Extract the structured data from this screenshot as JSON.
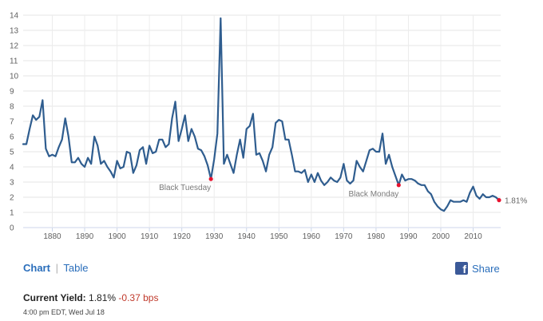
{
  "chart_data": {
    "type": "line",
    "title": "",
    "xlabel": "",
    "ylabel": "",
    "xlim": [
      1871,
      2018.5
    ],
    "ylim": [
      0,
      14
    ],
    "x_ticks": [
      1880,
      1890,
      1900,
      1910,
      1920,
      1930,
      1940,
      1950,
      1960,
      1970,
      1980,
      1990,
      2000,
      2010
    ],
    "y_ticks": [
      0,
      1,
      2,
      3,
      4,
      5,
      6,
      7,
      8,
      9,
      10,
      11,
      12,
      13,
      14
    ],
    "grid": true,
    "series": [
      {
        "name": "Yield",
        "color": "#2f5d8f",
        "points": [
          [
            1871,
            5.5
          ],
          [
            1872,
            5.5
          ],
          [
            1873,
            6.5
          ],
          [
            1874,
            7.4
          ],
          [
            1875,
            7.1
          ],
          [
            1876,
            7.3
          ],
          [
            1877,
            8.4
          ],
          [
            1878,
            5.2
          ],
          [
            1879,
            4.7
          ],
          [
            1880,
            4.8
          ],
          [
            1881,
            4.7
          ],
          [
            1882,
            5.3
          ],
          [
            1883,
            5.8
          ],
          [
            1884,
            7.2
          ],
          [
            1885,
            6.0
          ],
          [
            1886,
            4.3
          ],
          [
            1887,
            4.3
          ],
          [
            1888,
            4.6
          ],
          [
            1889,
            4.2
          ],
          [
            1890,
            4.0
          ],
          [
            1891,
            4.6
          ],
          [
            1892,
            4.2
          ],
          [
            1893,
            6.0
          ],
          [
            1894,
            5.4
          ],
          [
            1895,
            4.2
          ],
          [
            1896,
            4.4
          ],
          [
            1897,
            4.0
          ],
          [
            1898,
            3.7
          ],
          [
            1899,
            3.3
          ],
          [
            1900,
            4.4
          ],
          [
            1901,
            3.9
          ],
          [
            1902,
            4.0
          ],
          [
            1903,
            5.0
          ],
          [
            1904,
            4.9
          ],
          [
            1905,
            3.6
          ],
          [
            1906,
            4.1
          ],
          [
            1907,
            5.1
          ],
          [
            1908,
            5.3
          ],
          [
            1909,
            4.2
          ],
          [
            1910,
            5.4
          ],
          [
            1911,
            4.9
          ],
          [
            1912,
            5.0
          ],
          [
            1913,
            5.8
          ],
          [
            1914,
            5.8
          ],
          [
            1915,
            5.3
          ],
          [
            1916,
            5.5
          ],
          [
            1917,
            7.2
          ],
          [
            1918,
            8.3
          ],
          [
            1919,
            5.7
          ],
          [
            1920,
            6.5
          ],
          [
            1921,
            7.4
          ],
          [
            1922,
            5.7
          ],
          [
            1923,
            6.5
          ],
          [
            1924,
            6.0
          ],
          [
            1925,
            5.2
          ],
          [
            1926,
            5.1
          ],
          [
            1927,
            4.7
          ],
          [
            1928,
            4.1
          ],
          [
            1929,
            3.2
          ],
          [
            1930,
            4.5
          ],
          [
            1931,
            6.2
          ],
          [
            1932,
            13.8
          ],
          [
            1933,
            4.2
          ],
          [
            1934,
            4.8
          ],
          [
            1935,
            4.2
          ],
          [
            1936,
            3.6
          ],
          [
            1937,
            4.8
          ],
          [
            1938,
            5.8
          ],
          [
            1939,
            4.6
          ],
          [
            1940,
            6.5
          ],
          [
            1941,
            6.7
          ],
          [
            1942,
            7.5
          ],
          [
            1943,
            4.8
          ],
          [
            1944,
            4.9
          ],
          [
            1945,
            4.4
          ],
          [
            1946,
            3.7
          ],
          [
            1947,
            4.8
          ],
          [
            1948,
            5.3
          ],
          [
            1949,
            6.9
          ],
          [
            1950,
            7.1
          ],
          [
            1951,
            7.0
          ],
          [
            1952,
            5.8
          ],
          [
            1953,
            5.8
          ],
          [
            1954,
            4.8
          ],
          [
            1955,
            3.7
          ],
          [
            1956,
            3.7
          ],
          [
            1957,
            3.6
          ],
          [
            1958,
            3.8
          ],
          [
            1959,
            3.0
          ],
          [
            1960,
            3.5
          ],
          [
            1961,
            3.0
          ],
          [
            1962,
            3.6
          ],
          [
            1963,
            3.1
          ],
          [
            1964,
            2.8
          ],
          [
            1965,
            3.0
          ],
          [
            1966,
            3.3
          ],
          [
            1967,
            3.1
          ],
          [
            1968,
            3.0
          ],
          [
            1969,
            3.3
          ],
          [
            1970,
            4.2
          ],
          [
            1971,
            3.1
          ],
          [
            1972,
            2.9
          ],
          [
            1973,
            3.1
          ],
          [
            1974,
            4.4
          ],
          [
            1975,
            4.0
          ],
          [
            1976,
            3.7
          ],
          [
            1977,
            4.4
          ],
          [
            1978,
            5.1
          ],
          [
            1979,
            5.2
          ],
          [
            1980,
            5.0
          ],
          [
            1981,
            5.0
          ],
          [
            1982,
            6.2
          ],
          [
            1983,
            4.2
          ],
          [
            1984,
            4.8
          ],
          [
            1985,
            4.0
          ],
          [
            1986,
            3.4
          ],
          [
            1987,
            2.8
          ],
          [
            1988,
            3.5
          ],
          [
            1989,
            3.1
          ],
          [
            1990,
            3.2
          ],
          [
            1991,
            3.2
          ],
          [
            1992,
            3.1
          ],
          [
            1993,
            2.9
          ],
          [
            1994,
            2.8
          ],
          [
            1995,
            2.8
          ],
          [
            1996,
            2.4
          ],
          [
            1997,
            2.2
          ],
          [
            1998,
            1.7
          ],
          [
            1999,
            1.4
          ],
          [
            2000,
            1.2
          ],
          [
            2001,
            1.1
          ],
          [
            2002,
            1.4
          ],
          [
            2003,
            1.8
          ],
          [
            2004,
            1.7
          ],
          [
            2005,
            1.7
          ],
          [
            2006,
            1.7
          ],
          [
            2007,
            1.8
          ],
          [
            2008,
            1.7
          ],
          [
            2009,
            2.3
          ],
          [
            2010,
            2.7
          ],
          [
            2011,
            2.1
          ],
          [
            2012,
            1.9
          ],
          [
            2013,
            2.2
          ],
          [
            2014,
            2.0
          ],
          [
            2015,
            2.0
          ],
          [
            2016,
            2.1
          ],
          [
            2017,
            2.0
          ],
          [
            2018,
            1.81
          ]
        ]
      }
    ],
    "annotations": [
      {
        "label": "Black Tuesday",
        "x": 1929,
        "y": 3.2
      },
      {
        "label": "Black Monday",
        "x": 1987,
        "y": 2.8
      }
    ],
    "end_label": {
      "x": 2018,
      "y": 1.81,
      "text": "1.81%"
    }
  },
  "tabs": {
    "chart_label": "Chart",
    "table_label": "Table",
    "separator": "|"
  },
  "share": {
    "label": "Share",
    "icon": "f"
  },
  "current_yield": {
    "label": "Current Yield:",
    "value": "1.81%",
    "change": "-0.37 bps"
  },
  "timestamp": "4:00 pm EDT, Wed Jul 18",
  "colors": {
    "line": "#2f5d8f",
    "marker": "#e8112d",
    "link": "#2a6ebb",
    "negative": "#c0392b",
    "facebook": "#3b5998"
  }
}
